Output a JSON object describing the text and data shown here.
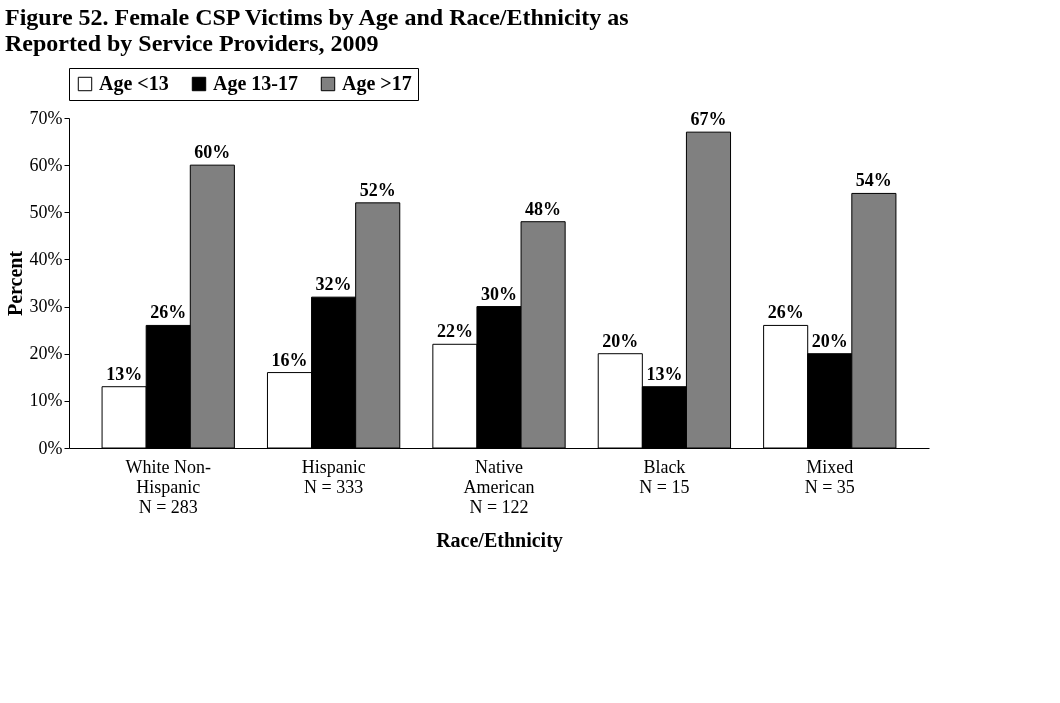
{
  "chart_data": {
    "type": "bar",
    "title": "Figure 52.  Female CSP Victims by Age and Race/Ethnicity as\nReported by Service Providers, 2009",
    "xlabel": "Race/Ethnicity",
    "ylabel": "Percent",
    "categories": [
      "White Non-\nHispanic\nN = 283",
      "Hispanic\nN = 333",
      "Native\nAmerican\nN = 122",
      "Black\nN = 15",
      "Mixed\nN = 35"
    ],
    "series": [
      {
        "name": "Age <13",
        "color": "#ffffff",
        "values": [
          13,
          16,
          22,
          20,
          26
        ],
        "value_labels": [
          "13%",
          "16%",
          "22%",
          "20%",
          "26%"
        ]
      },
      {
        "name": "Age 13-17",
        "color": "#000000",
        "values": [
          26,
          32,
          30,
          13,
          20
        ],
        "value_labels": [
          "26%",
          "32%",
          "30%",
          "13%",
          "20%"
        ]
      },
      {
        "name": "Age >17",
        "color": "#808080",
        "values": [
          60,
          52,
          48,
          67,
          54
        ],
        "value_labels": [
          "60%",
          "52%",
          "48%",
          "67%",
          "54%"
        ]
      }
    ],
    "ylim": [
      0,
      70
    ],
    "yticks": [
      {
        "value": 0,
        "label": "0%"
      },
      {
        "value": 10,
        "label": "10%"
      },
      {
        "value": 20,
        "label": "20%"
      },
      {
        "value": 30,
        "label": "30%"
      },
      {
        "value": 40,
        "label": "40%"
      },
      {
        "value": 50,
        "label": "50%"
      },
      {
        "value": 60,
        "label": "60%"
      },
      {
        "value": 70,
        "label": "70%"
      }
    ],
    "grid": false,
    "legend": "top"
  }
}
